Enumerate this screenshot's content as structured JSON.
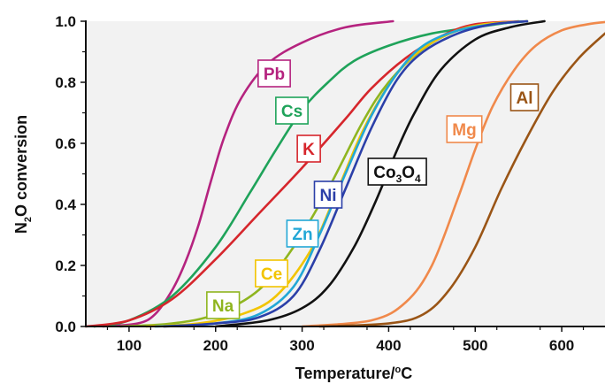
{
  "chart_data": {
    "type": "line",
    "title": "",
    "xlabel": {
      "base": "Temperature/",
      "sup": "o",
      "rest": "C"
    },
    "ylabel": {
      "n": "N",
      "sub": "2",
      "rest": "O conversion"
    },
    "xlim": [
      50,
      650
    ],
    "ylim": [
      0,
      1.0
    ],
    "xticks": [
      100,
      200,
      300,
      400,
      500,
      600
    ],
    "xtick_labels": [
      "100",
      "200",
      "300",
      "400",
      "500",
      "600"
    ],
    "yticks": [
      0,
      0.2,
      0.4,
      0.6,
      0.8,
      1.0
    ],
    "ytick_labels": [
      "0.0",
      "0.2",
      "0.4",
      "0.6",
      "0.8",
      "1.0"
    ],
    "grid": false,
    "background": "#f2f2f2",
    "series": [
      {
        "name": "Pb",
        "color": "#b5237f",
        "label_parts": [
          [
            "Pb",
            ""
          ]
        ],
        "x": [
          70,
          110,
          130,
          150,
          165,
          180,
          195,
          210,
          230,
          260,
          300,
          350,
          405
        ],
        "y": [
          0.0,
          0.01,
          0.04,
          0.12,
          0.21,
          0.33,
          0.48,
          0.62,
          0.75,
          0.86,
          0.93,
          0.98,
          1.0
        ]
      },
      {
        "name": "Cs",
        "color": "#1fa35a",
        "label_parts": [
          [
            "Cs",
            ""
          ]
        ],
        "x": [
          60,
          100,
          150,
          200,
          240,
          270,
          300,
          330,
          360,
          400,
          450,
          500,
          550
        ],
        "y": [
          0.0,
          0.02,
          0.1,
          0.26,
          0.44,
          0.58,
          0.71,
          0.8,
          0.87,
          0.92,
          0.96,
          0.98,
          1.0
        ]
      },
      {
        "name": "K",
        "color": "#d6262c",
        "label_parts": [
          [
            "K",
            ""
          ]
        ],
        "x": [
          50,
          100,
          150,
          200,
          250,
          300,
          350,
          380,
          420,
          460,
          500,
          560
        ],
        "y": [
          0.0,
          0.02,
          0.09,
          0.22,
          0.37,
          0.52,
          0.68,
          0.78,
          0.88,
          0.95,
          0.99,
          1.0
        ]
      },
      {
        "name": "Na",
        "color": "#8fb51f",
        "label_parts": [
          [
            "Na",
            ""
          ]
        ],
        "x": [
          90,
          150,
          200,
          250,
          290,
          330,
          370,
          400,
          440,
          480,
          520,
          560
        ],
        "y": [
          0.0,
          0.01,
          0.04,
          0.12,
          0.26,
          0.45,
          0.67,
          0.8,
          0.91,
          0.97,
          0.99,
          1.0
        ]
      },
      {
        "name": "Ce",
        "color": "#f2c400",
        "label_parts": [
          [
            "Ce",
            ""
          ]
        ],
        "x": [
          120,
          180,
          230,
          270,
          310,
          340,
          370,
          400,
          430,
          470,
          510,
          560
        ],
        "y": [
          0.0,
          0.01,
          0.04,
          0.1,
          0.25,
          0.44,
          0.64,
          0.79,
          0.89,
          0.96,
          0.99,
          1.0
        ]
      },
      {
        "name": "Zn",
        "color": "#22a7d6",
        "label_parts": [
          [
            "Zn",
            ""
          ]
        ],
        "x": [
          130,
          200,
          250,
          290,
          320,
          350,
          380,
          410,
          440,
          480,
          520,
          560
        ],
        "y": [
          0.0,
          0.01,
          0.04,
          0.13,
          0.3,
          0.5,
          0.69,
          0.83,
          0.92,
          0.97,
          0.99,
          1.0
        ]
      },
      {
        "name": "Ni",
        "color": "#2b3fa8",
        "label_parts": [
          [
            "Ni",
            ""
          ]
        ],
        "x": [
          140,
          200,
          250,
          290,
          320,
          350,
          380,
          410,
          440,
          480,
          520,
          560
        ],
        "y": [
          0.0,
          0.01,
          0.03,
          0.1,
          0.25,
          0.45,
          0.65,
          0.81,
          0.9,
          0.96,
          0.99,
          1.0
        ]
      },
      {
        "name": "Co3O4",
        "color": "#111111",
        "label_parts": [
          [
            "Co",
            ""
          ],
          [
            "3",
            "sub"
          ],
          [
            "O",
            ""
          ],
          [
            "4",
            "sub"
          ]
        ],
        "x": [
          200,
          260,
          300,
          330,
          360,
          385,
          410,
          430,
          460,
          500,
          540,
          580
        ],
        "y": [
          0.0,
          0.02,
          0.06,
          0.13,
          0.26,
          0.41,
          0.58,
          0.7,
          0.84,
          0.94,
          0.98,
          1.0
        ]
      },
      {
        "name": "Mg",
        "color": "#f0894b",
        "label_parts": [
          [
            "Mg",
            ""
          ]
        ],
        "x": [
          300,
          380,
          420,
          450,
          480,
          500,
          520,
          545,
          570,
          600,
          630,
          660
        ],
        "y": [
          0.0,
          0.02,
          0.08,
          0.2,
          0.42,
          0.58,
          0.72,
          0.84,
          0.92,
          0.97,
          0.99,
          1.0
        ]
      },
      {
        "name": "Al",
        "color": "#9a5516",
        "label_parts": [
          [
            "Al",
            ""
          ]
        ],
        "x": [
          320,
          400,
          440,
          470,
          500,
          530,
          560,
          590,
          620,
          650
        ],
        "y": [
          0.0,
          0.01,
          0.04,
          0.12,
          0.26,
          0.45,
          0.62,
          0.77,
          0.88,
          0.96
        ]
      }
    ]
  }
}
